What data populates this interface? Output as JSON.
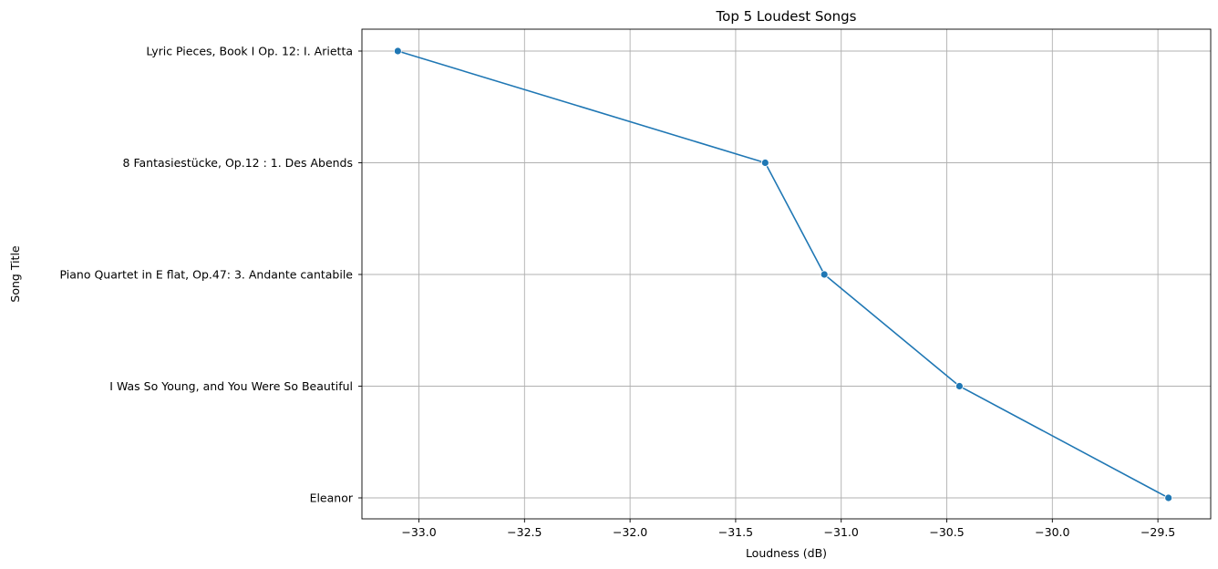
{
  "chart_data": {
    "type": "line",
    "title": "Top 5 Loudest Songs",
    "xlabel": "Loudness (dB)",
    "ylabel": "Song Title",
    "xlim": [
      -33.27,
      -29.25
    ],
    "xticks": [
      -33.0,
      -32.5,
      -32.0,
      -31.5,
      -31.0,
      -30.5,
      -30.0,
      -29.5
    ],
    "xtick_labels": [
      "−33.0",
      "−32.5",
      "−32.0",
      "−31.5",
      "−31.0",
      "−30.5",
      "−30.0",
      "−29.5"
    ],
    "categories": [
      "Lyric Pieces, Book I Op. 12: I. Arietta",
      "8 Fantasiestücke, Op.12 : 1. Des Abends",
      "Piano Quartet in E flat, Op.47: 3. Andante cantabile",
      "I Was So Young, and You Were So Beautiful",
      "Eleanor"
    ],
    "values": [
      -33.1,
      -31.36,
      -31.08,
      -30.44,
      -29.45
    ],
    "grid": true,
    "color": "#1f77b4",
    "marker": "circle"
  }
}
